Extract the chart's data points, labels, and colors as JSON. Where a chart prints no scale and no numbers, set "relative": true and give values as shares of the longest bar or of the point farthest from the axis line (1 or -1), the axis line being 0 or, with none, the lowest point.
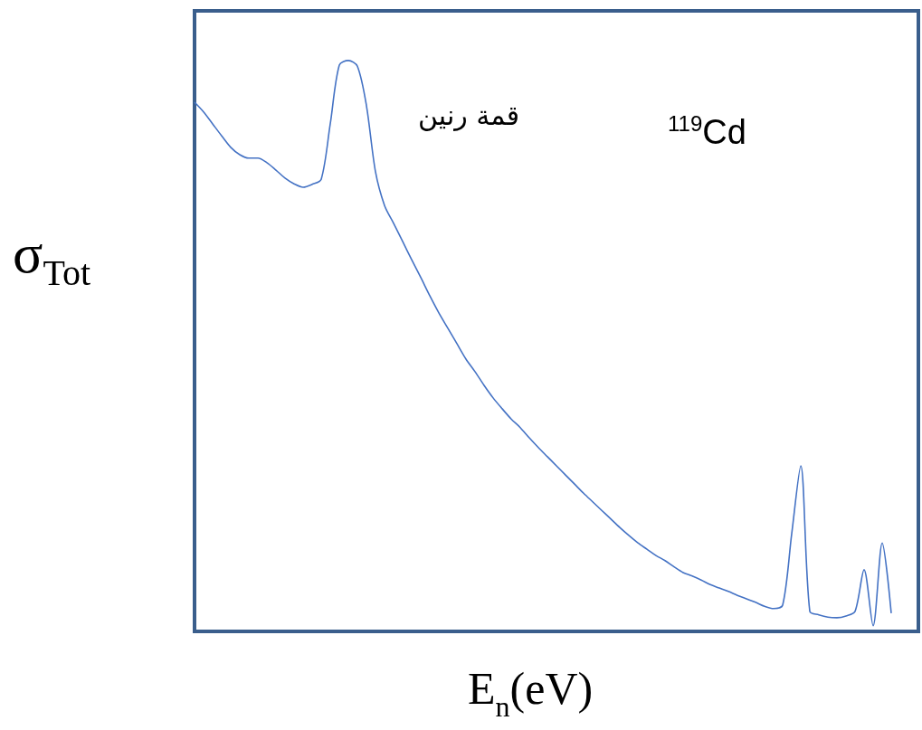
{
  "chart_data": {
    "type": "line",
    "relative": true,
    "grid": false,
    "marker": "none",
    "xlabel": "E$_{n}$(eV)",
    "ylabel": "σ$_{Tot}$",
    "annotations": [
      "قمة رنين",
      "$^{119}$Cd"
    ],
    "categories": [
      null,
      null,
      null,
      null,
      null,
      null,
      null,
      null,
      null,
      null,
      null,
      null,
      null,
      null,
      null,
      null,
      null,
      null,
      null,
      null,
      null,
      null,
      null,
      null,
      null,
      null,
      null,
      null,
      null,
      null,
      null,
      null,
      null,
      null,
      null,
      null,
      null,
      null,
      null,
      null,
      null,
      null,
      null,
      null,
      null,
      null,
      null,
      null,
      null,
      null,
      null,
      null,
      null,
      null,
      null,
      null,
      null,
      null,
      null,
      null,
      null,
      null,
      null,
      null,
      null,
      null,
      null,
      null,
      null,
      null,
      null,
      null,
      null,
      null,
      null,
      null,
      null,
      null,
      null,
      null,
      null
    ],
    "series": [
      {
        "color": "#4472c4",
        "values": [
          0.927,
          0.91,
          0.889,
          0.868,
          0.848,
          0.835,
          0.829,
          0.829,
          0.821,
          0.808,
          0.794,
          0.784,
          0.778,
          0.783,
          0.792,
          0.889,
          0.992,
          1,
          0.99,
          0.921,
          0.805,
          0.746,
          0.715,
          0.683,
          0.651,
          0.62,
          0.588,
          0.558,
          0.531,
          0.504,
          0.477,
          0.455,
          0.431,
          0.409,
          0.39,
          0.372,
          0.357,
          0.339,
          0.322,
          0.306,
          0.29,
          0.274,
          0.258,
          0.242,
          0.227,
          0.212,
          0.197,
          0.182,
          0.168,
          0.155,
          0.144,
          0.133,
          0.124,
          0.113,
          0.103,
          0.097,
          0.09,
          0.082,
          0.076,
          0.07,
          0.063,
          0.057,
          0.051,
          0.044,
          0.04,
          0.046,
          0.171,
          0.29,
          0.035,
          0.029,
          0.025,
          0.024,
          0.027,
          0.035,
          0.108,
          0.01,
          0.155,
          0.032,
          null,
          null,
          null
        ]
      }
    ]
  }
}
